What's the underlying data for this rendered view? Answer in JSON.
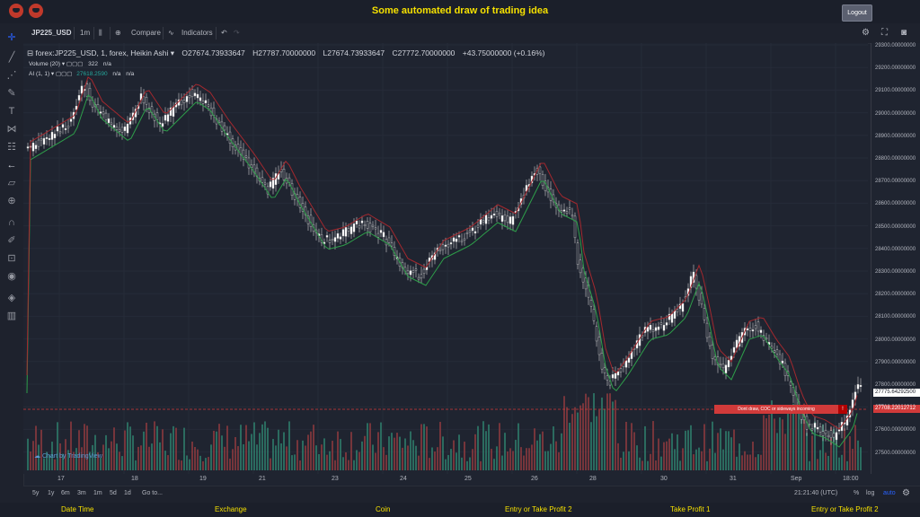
{
  "header": {
    "title": "Some automated draw of trading idea",
    "logout_label": "Logout"
  },
  "toolbar": {
    "symbol": "JP225_USD",
    "interval": "1m",
    "compare_label": "Compare",
    "indicators_label": "Indicators"
  },
  "legend": {
    "main": "forex:JP225_USD, 1, forex, Heikin Ashi",
    "open": "O27674.73933647",
    "high": "H27787.70000000",
    "low": "L27674.73933647",
    "close": "C27772.70000000",
    "change": "+43.75000000 (+0.16%)",
    "volume_label": "Volume (20)",
    "volume_value": "322",
    "volume_extra": "n/a",
    "ai_label": "AI (1, 1)",
    "ai_value": "27618.2590",
    "ai_na1": "n/a",
    "ai_na2": "n/a"
  },
  "price_axis": {
    "labels": [
      "29300.00000000",
      "29200.00000000",
      "29100.00000000",
      "29000.00000000",
      "28900.00000000",
      "28800.00000000",
      "28700.00000000",
      "28600.00000000",
      "28500.00000000",
      "28400.00000000",
      "28300.00000000",
      "28200.00000000",
      "28100.00000000",
      "28000.00000000",
      "27900.00000000",
      "27800.00000000",
      "27700.00000000",
      "27600.00000000",
      "27500.00000000"
    ],
    "last_price": "27775.64292500",
    "hint_price": "27708.22012712"
  },
  "time_axis": {
    "labels": [
      "17",
      "18",
      "19",
      "21",
      "23",
      "24",
      "25",
      "26",
      "28",
      "30",
      "31",
      "Sep",
      "18:00"
    ]
  },
  "hint_box": {
    "text": "Dont draw, COC or sideways incoming",
    "close": "!"
  },
  "watermark": "Chart by TradingView",
  "bottom": {
    "ranges": [
      "5y",
      "1y",
      "6m",
      "3m",
      "1m",
      "5d",
      "1d"
    ],
    "goto": "Go to...",
    "time": "21:21:40 (UTC)",
    "percent": "%",
    "log": "log",
    "auto": "auto"
  },
  "footer": {
    "labels": [
      "Date Time",
      "Exchange",
      "Coin",
      "Entry or Take Profit 2",
      "Take Profit 1",
      "Entry or Take Profit 2"
    ]
  },
  "colors": {
    "accent": "#f5e000",
    "up": "#26a69a",
    "down": "#ef5350",
    "background": "#1f2430",
    "highlight": "#d13a3a"
  }
}
